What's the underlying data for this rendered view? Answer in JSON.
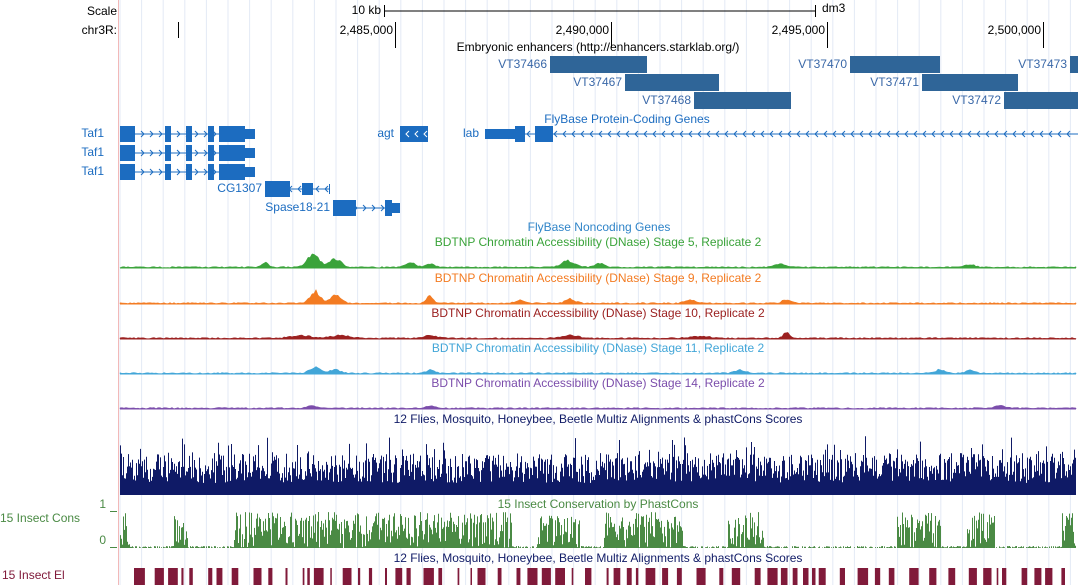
{
  "header": {
    "scale_label": "Scale",
    "scale_bar_label": "10 kb",
    "assembly": "dm3",
    "chrom_label": "chr3R:",
    "ruler_ticks": [
      "2,485,000",
      "2,490,000",
      "2,495,000",
      "2,500,000"
    ]
  },
  "tracks": {
    "enhancers": {
      "title": "Embryonic enhancers (http://enhancers.starklab.org/)",
      "color": "#2f6598",
      "label_color": "#3a68a8",
      "items": [
        "VT37466",
        "VT37467",
        "VT37468",
        "VT37470",
        "VT37471",
        "VT37472",
        "VT37473"
      ]
    },
    "protein_genes": {
      "title": "FlyBase Protein-Coding Genes",
      "color": "#1c6cc0",
      "items": [
        "Taf1",
        "Taf1",
        "Taf1",
        "agt",
        "lab",
        "CG1307",
        "Spase18-21"
      ]
    },
    "noncoding_genes": {
      "title": "FlyBase Noncoding Genes",
      "color": "#2f84c8"
    },
    "dnase": [
      {
        "title": "BDTNP Chromatin Accessibility (DNase) Stage 5, Replicate 2",
        "color": "#3aa33a"
      },
      {
        "title": "BDTNP Chromatin Accessibility (DNase) Stage 9, Replicate 2",
        "color": "#f37b22"
      },
      {
        "title": "BDTNP Chromatin Accessibility (DNase) Stage 10, Replicate 2",
        "color": "#9b2020"
      },
      {
        "title": "BDTNP Chromatin Accessibility (DNase) Stage 11, Replicate 2",
        "color": "#42a6d8"
      },
      {
        "title": "BDTNP Chromatin Accessibility (DNase) Stage 14, Replicate 2",
        "color": "#7b4dab"
      }
    ],
    "multiz": {
      "title": "12 Flies, Mosquito, Honeybee, Beetle Multiz Alignments & phastCons Scores",
      "color": "#0f1a66"
    },
    "phastcons": {
      "title": "15 Insect Conservation by PhastCons",
      "label": "15 Insect Cons",
      "max_label": "1",
      "min_label": "0",
      "color": "#4a8a44"
    },
    "multiz_2": {
      "title": "12 Flies, Mosquito, Honeybee, Beetle Multiz Alignments & phastCons Scores",
      "color": "#0f1a66"
    },
    "elements": {
      "label": "15 Insect El",
      "color": "#801a3a"
    }
  }
}
